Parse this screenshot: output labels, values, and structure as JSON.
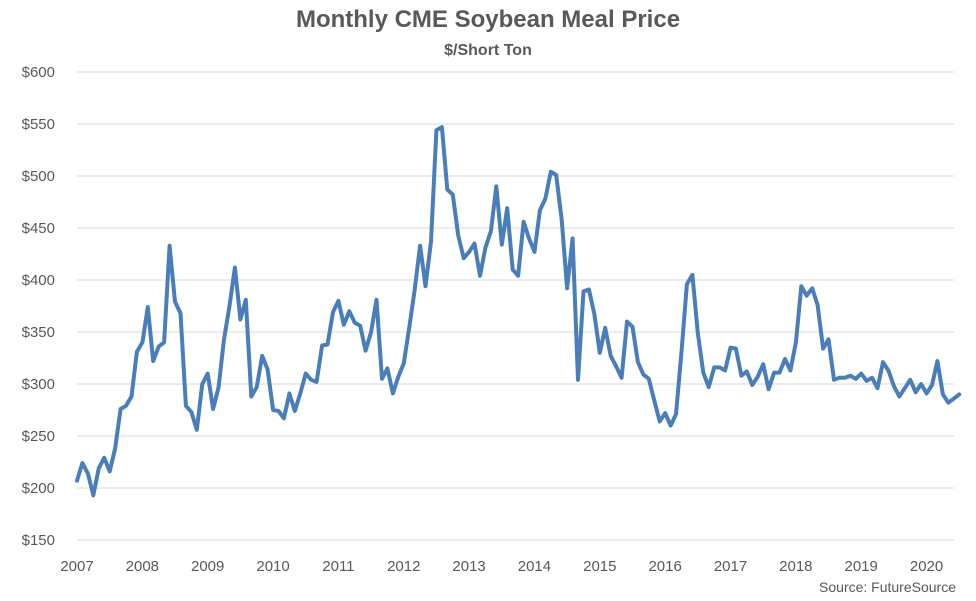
{
  "chart_data": {
    "type": "line",
    "title": "Monthly CME Soybean Meal Price",
    "subtitle": "$/Short Ton",
    "source": "Source: FutureSource",
    "xlabel": "",
    "ylabel": "",
    "ylim": [
      150,
      600
    ],
    "xlim": [
      2007.0,
      2020.42
    ],
    "y_ticks": [
      150,
      200,
      250,
      300,
      350,
      400,
      450,
      500,
      550,
      600
    ],
    "y_tick_labels": [
      "$150",
      "$200",
      "$250",
      "$300",
      "$350",
      "$400",
      "$450",
      "$500",
      "$550",
      "$600"
    ],
    "x_ticks": [
      2007,
      2008,
      2009,
      2010,
      2011,
      2012,
      2013,
      2014,
      2015,
      2016,
      2017,
      2018,
      2019,
      2020
    ],
    "x_tick_labels": [
      "2007",
      "2008",
      "2009",
      "2010",
      "2011",
      "2012",
      "2013",
      "2014",
      "2015",
      "2016",
      "2017",
      "2018",
      "2019",
      "2020"
    ],
    "grid": "horizontal",
    "line_color": "#4A7EBB",
    "series": [
      {
        "values": [
          207,
          224,
          214,
          193,
          219,
          229,
          216,
          238,
          276,
          279,
          288,
          331,
          340,
          374,
          322,
          336,
          340,
          433,
          379,
          368,
          279,
          273,
          256,
          300,
          310,
          276,
          297,
          343,
          375,
          412,
          362,
          381,
          288,
          297,
          327,
          314,
          275,
          274,
          267,
          291,
          274,
          291,
          310,
          304,
          302,
          337,
          338,
          369,
          380,
          357,
          370,
          359,
          356,
          332,
          350,
          381,
          305,
          315,
          291,
          307,
          320,
          354,
          390,
          433,
          394,
          437,
          544,
          547,
          487,
          482,
          443,
          421,
          427,
          435,
          404,
          431,
          447,
          490,
          434,
          469,
          410,
          404,
          456,
          440,
          427,
          467,
          478,
          504,
          501,
          458,
          392,
          440,
          304,
          389,
          391,
          367,
          330,
          354,
          327,
          317,
          306,
          360,
          355,
          321,
          309,
          305,
          284,
          264,
          272,
          260,
          271,
          331,
          396,
          405,
          349,
          311,
          297,
          316,
          316,
          313,
          335,
          334,
          308,
          312,
          299,
          307,
          319,
          295,
          311,
          311,
          324,
          313,
          340,
          394,
          385,
          392,
          376,
          334,
          343,
          304,
          306,
          306,
          308,
          305,
          310,
          303,
          306,
          296,
          321,
          313,
          298,
          288,
          296,
          304,
          292,
          300,
          291,
          299,
          322,
          290,
          282,
          286,
          290
        ],
        "start": "2007-01",
        "step": "month"
      }
    ]
  }
}
